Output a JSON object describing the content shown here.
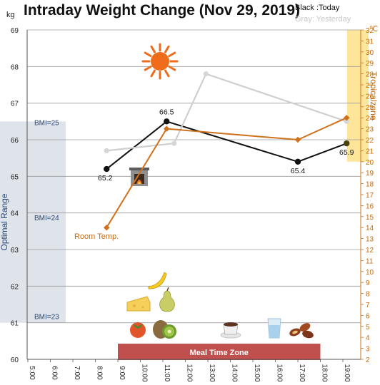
{
  "chart_data": {
    "type": "line",
    "title": "Intraday Weight Change (Nov 29, 2019)",
    "y_unit_left": "kg",
    "y_unit_right": "℃",
    "ylim": [
      60,
      69
    ],
    "y2lim": [
      2,
      32
    ],
    "y_ticks": [
      60,
      61,
      62,
      63,
      64,
      65,
      66,
      67,
      68,
      69
    ],
    "y2_ticks": [
      2,
      3,
      4,
      5,
      6,
      7,
      8,
      9,
      10,
      11,
      12,
      13,
      14,
      15,
      16,
      17,
      18,
      19,
      20,
      21,
      22,
      23,
      24,
      25,
      26,
      27,
      28,
      29,
      30,
      31,
      32
    ],
    "x_ticks": [
      "5:00",
      "6:00",
      "7:00",
      "8:00",
      "9:00",
      "10:00",
      "11:00",
      "12:00",
      "13:00",
      "14:00",
      "15:00",
      "16:00",
      "17:00",
      "18:00",
      "19:00"
    ],
    "legend": [
      "Black :Today",
      "Gray: Yesterday"
    ],
    "series": [
      {
        "name": "Today",
        "axis": "left",
        "color": "#111111",
        "points": [
          {
            "x": "8:30",
            "y": 65.2
          },
          {
            "x": "11:10",
            "y": 66.5
          },
          {
            "x": "17:00",
            "y": 65.4
          },
          {
            "x": "19:10",
            "y": 65.9
          }
        ],
        "labels": [
          "65.2",
          "66.5",
          "65.4",
          "65.9"
        ]
      },
      {
        "name": "Yesterday",
        "axis": "left",
        "color": "#cfcfcf",
        "points": [
          {
            "x": "8:30",
            "y": 65.7
          },
          {
            "x": "11:30",
            "y": 65.9
          },
          {
            "x": "12:55",
            "y": 67.8
          },
          {
            "x": "19:10",
            "y": 66.5
          }
        ]
      },
      {
        "name": "Room Temp.",
        "axis": "right",
        "color": "#d0711c",
        "points": [
          {
            "x": "8:30",
            "y": 14
          },
          {
            "x": "11:10",
            "y": 23
          },
          {
            "x": "17:00",
            "y": 22
          },
          {
            "x": "19:10",
            "y": 24
          }
        ]
      }
    ],
    "bands": {
      "optimal_range": {
        "label": "Optimal Range",
        "from": 61,
        "to": 66.5,
        "color": "#dfe3ea"
      },
      "bmi_lines": [
        {
          "label": "BMI=25",
          "y": 66.4
        },
        {
          "label": "BMI=24",
          "y": 63.8
        },
        {
          "label": "BMI=23",
          "y": 61.1
        }
      ],
      "tropical_zone": {
        "label": "Tropicalzone",
        "from": 20,
        "to": 32,
        "color": "#fde59a"
      },
      "meal_zone": {
        "label": "Meal Time Zone",
        "from": "9:00",
        "to": "18:00",
        "color": "#c0504d"
      }
    },
    "annotations": {
      "room_temp_label": "Room Temp.",
      "icons": [
        "sun-icon",
        "fireplace-icon",
        "banana-icon",
        "pear-icon",
        "cheese-icon",
        "persimmon-icon",
        "kiwi-icon",
        "coffee-icon",
        "water-glass-icon",
        "dates-icon"
      ]
    },
    "grid": true
  }
}
